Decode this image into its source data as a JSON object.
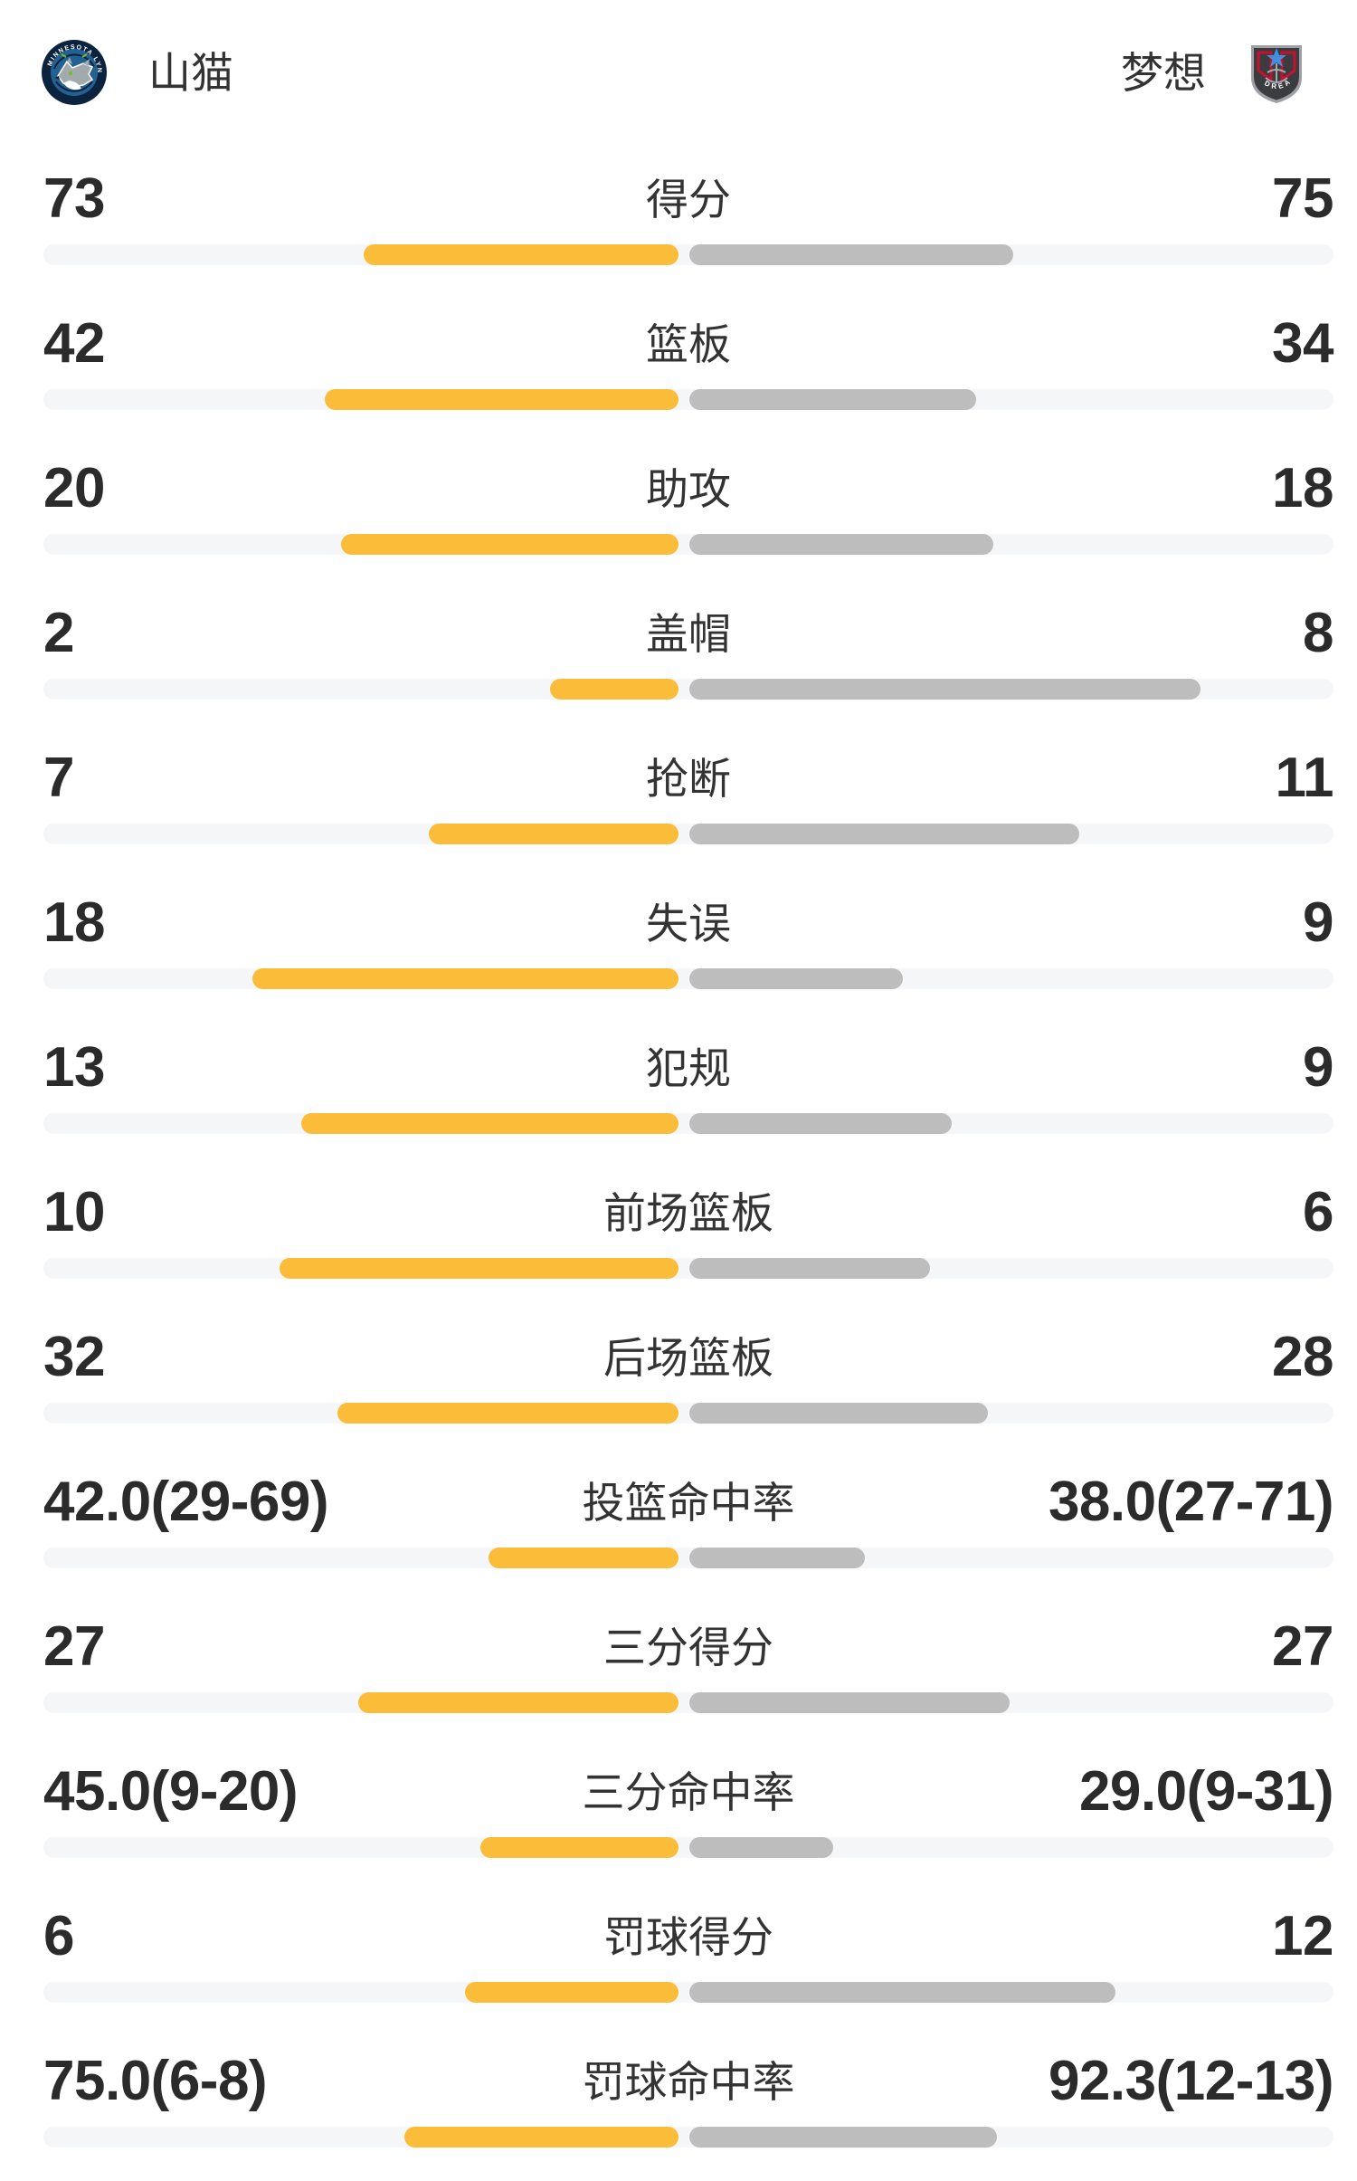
{
  "header": {
    "home_team": {
      "name": "山猫",
      "logo": "minnesota-lynx-crest"
    },
    "away_team": {
      "name": "梦想",
      "logo": "atlanta-dream-crest"
    }
  },
  "colors": {
    "home_bar": "#FBBC3A",
    "away_bar": "#BDBDBD",
    "track": "#F5F6F8",
    "number": "#2B2B2B",
    "label": "#333333",
    "page_bg": "#FFFFFF"
  },
  "chart_data": {
    "type": "bar",
    "teams": [
      "山猫",
      "梦想"
    ],
    "legend_position": "header",
    "rows": [
      {
        "label": "得分",
        "home": "73",
        "away": "75",
        "home_num": 73,
        "away_num": 75,
        "home_bar": 24.4,
        "away_bar": 25.1
      },
      {
        "label": "篮板",
        "home": "42",
        "away": "34",
        "home_num": 42,
        "away_num": 34,
        "home_bar": 27.4,
        "away_bar": 22.2
      },
      {
        "label": "助攻",
        "home": "20",
        "away": "18",
        "home_num": 20,
        "away_num": 18,
        "home_bar": 26.1,
        "away_bar": 23.5
      },
      {
        "label": "盖帽",
        "home": "2",
        "away": "8",
        "home_num": 2,
        "away_num": 8,
        "home_bar": 9.9,
        "away_bar": 39.6
      },
      {
        "label": "抢断",
        "home": "7",
        "away": "11",
        "home_num": 7,
        "away_num": 11,
        "home_bar": 19.3,
        "away_bar": 30.2
      },
      {
        "label": "失误",
        "home": "18",
        "away": "9",
        "home_num": 18,
        "away_num": 9,
        "home_bar": 33.0,
        "away_bar": 16.5
      },
      {
        "label": "犯规",
        "home": "13",
        "away": "9",
        "home_num": 13,
        "away_num": 9,
        "home_bar": 29.2,
        "away_bar": 20.3
      },
      {
        "label": "前场篮板",
        "home": "10",
        "away": "6",
        "home_num": 10,
        "away_num": 6,
        "home_bar": 30.9,
        "away_bar": 18.6
      },
      {
        "label": "后场篮板",
        "home": "32",
        "away": "28",
        "home_num": 32,
        "away_num": 28,
        "home_bar": 26.4,
        "away_bar": 23.1
      },
      {
        "label": "投篮命中率",
        "home": "42.0(29-69)",
        "away": "38.0(27-71)",
        "home_num": 42.0,
        "away_num": 38.0,
        "home_bar": 14.7,
        "away_bar": 13.6
      },
      {
        "label": "三分得分",
        "home": "27",
        "away": "27",
        "home_num": 27,
        "away_num": 27,
        "home_bar": 24.8,
        "away_bar": 24.8
      },
      {
        "label": "三分命中率",
        "home": "45.0(9-20)",
        "away": "29.0(9-31)",
        "home_num": 45.0,
        "away_num": 29.0,
        "home_bar": 15.3,
        "away_bar": 11.1
      },
      {
        "label": "罚球得分",
        "home": "6",
        "away": "12",
        "home_num": 6,
        "away_num": 12,
        "home_bar": 16.5,
        "away_bar": 33.0
      },
      {
        "label": "罚球命中率",
        "home": "75.0(6-8)",
        "away": "92.3(12-13)",
        "home_num": 75.0,
        "away_num": 92.3,
        "home_bar": 21.2,
        "away_bar": 23.8
      }
    ]
  }
}
